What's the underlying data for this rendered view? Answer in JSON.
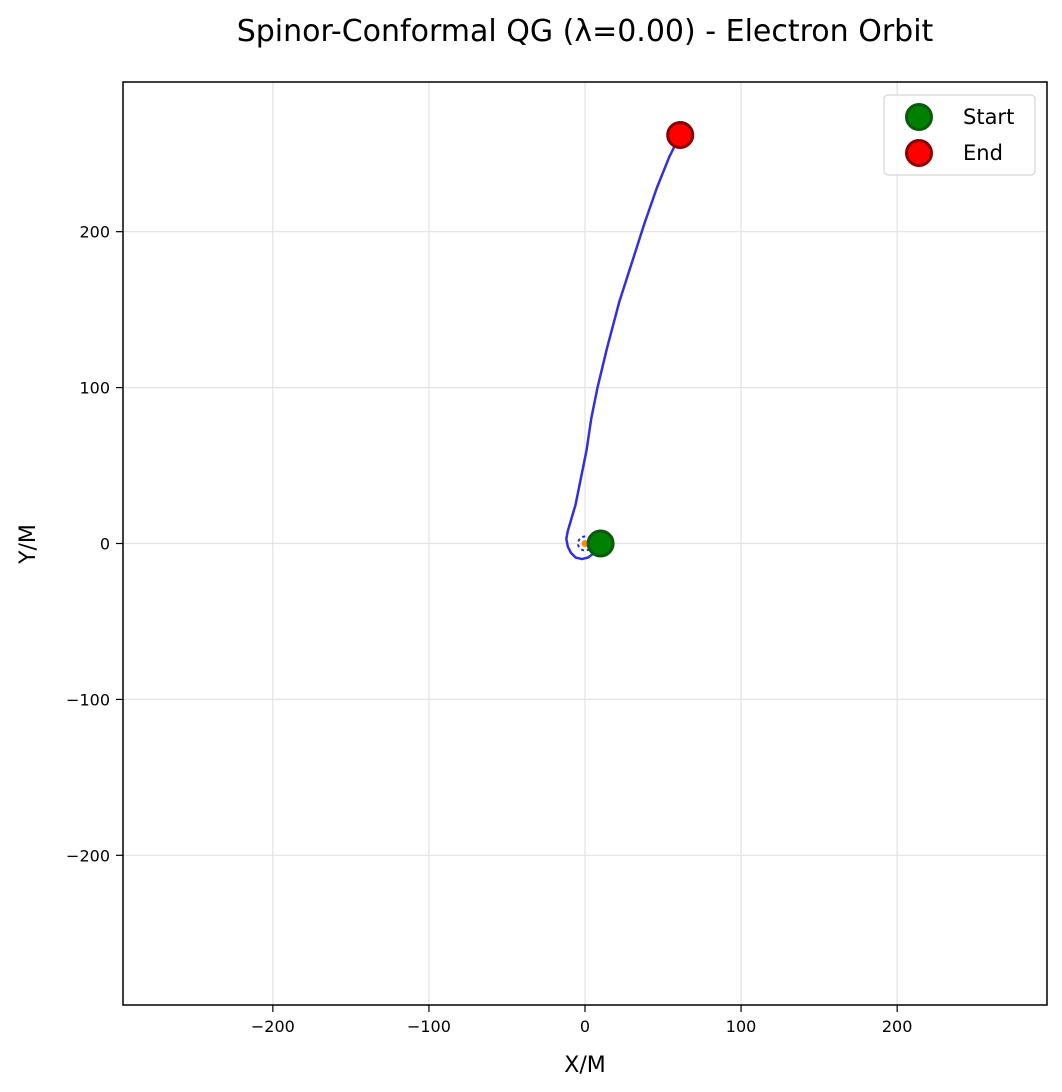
{
  "chart_data": {
    "type": "scatter",
    "title": "Spinor-Conformal QG (λ=0.00) - Electron Orbit",
    "xlabel": "X/M",
    "ylabel": "Y/M",
    "xlim": [
      -296,
      296
    ],
    "ylim": [
      -296,
      296
    ],
    "grid": true,
    "legend_position": "top-right",
    "x_ticks": [
      -200,
      -100,
      0,
      100,
      200
    ],
    "y_ticks": [
      -200,
      -100,
      0,
      100,
      200
    ],
    "x_tick_labels": [
      "−200",
      "−100",
      "0",
      "100",
      "200"
    ],
    "y_tick_labels": [
      "−200",
      "−100",
      "0",
      "100",
      "200"
    ],
    "series": [
      {
        "kind": "line",
        "color": "#3030e0",
        "x": [
          10,
          6,
          2,
          -2,
          -6,
          -9,
          -11,
          -12,
          -11,
          -9,
          -6,
          -3,
          1,
          4,
          8,
          14,
          22,
          30,
          38,
          46,
          54,
          61
        ],
        "y": [
          0,
          -6,
          -9,
          -10,
          -9,
          -6,
          -2,
          3,
          8,
          15,
          25,
          40,
          60,
          80,
          100,
          125,
          155,
          180,
          205,
          228,
          248,
          262
        ]
      },
      {
        "kind": "marker",
        "name": "Start",
        "color": "#008000",
        "edge": "#0a5a0a",
        "x": [
          10
        ],
        "y": [
          0
        ]
      },
      {
        "kind": "marker",
        "name": "End",
        "color": "#ff0000",
        "edge": "#8b0000",
        "x": [
          61
        ],
        "y": [
          262
        ]
      }
    ],
    "central_object": {
      "color": "#ff8c00",
      "x": 0,
      "y": 0
    }
  }
}
